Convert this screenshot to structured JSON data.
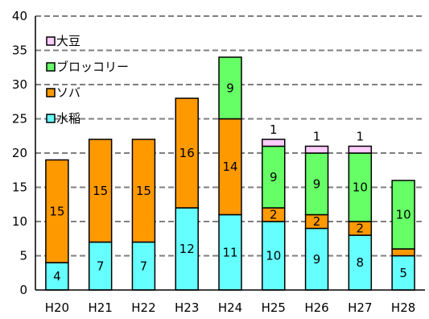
{
  "chart_data": {
    "type": "bar",
    "stacked": true,
    "categories": [
      "H20",
      "H21",
      "H22",
      "H23",
      "H24",
      "H25",
      "H26",
      "H27",
      "H28"
    ],
    "series": [
      {
        "name": "水稲",
        "color": "#66ffff",
        "values": [
          4,
          7,
          7,
          12,
          11,
          10,
          9,
          8,
          5
        ]
      },
      {
        "name": "ソバ",
        "color": "#ff9900",
        "values": [
          15,
          15,
          15,
          16,
          14,
          2,
          2,
          2,
          1
        ]
      },
      {
        "name": "ブロッコリー",
        "color": "#66ff66",
        "values": [
          0,
          0,
          0,
          0,
          9,
          9,
          9,
          10,
          10
        ]
      },
      {
        "name": "大豆",
        "color": "#ffccff",
        "values": [
          0,
          0,
          0,
          0,
          0,
          1,
          1,
          1,
          0
        ]
      }
    ],
    "data_labels": [
      [
        "4",
        "7",
        "7",
        "12",
        "11",
        "10",
        "9",
        "8",
        "5"
      ],
      [
        "15",
        "15",
        "15",
        "16",
        "14",
        "2",
        "2",
        "2",
        ""
      ],
      [
        "",
        "",
        "",
        "",
        "9",
        "9",
        "9",
        "10",
        "10"
      ],
      [
        "",
        "",
        "",
        "",
        "",
        "1",
        "1",
        "1",
        ""
      ]
    ],
    "yticks": [
      "0",
      "5",
      "10",
      "15",
      "20",
      "25",
      "30",
      "35",
      "40"
    ],
    "ylim": [
      0,
      40
    ],
    "grid": true,
    "legend_position": "top-left",
    "title": "",
    "xlabel": "",
    "ylabel": ""
  }
}
